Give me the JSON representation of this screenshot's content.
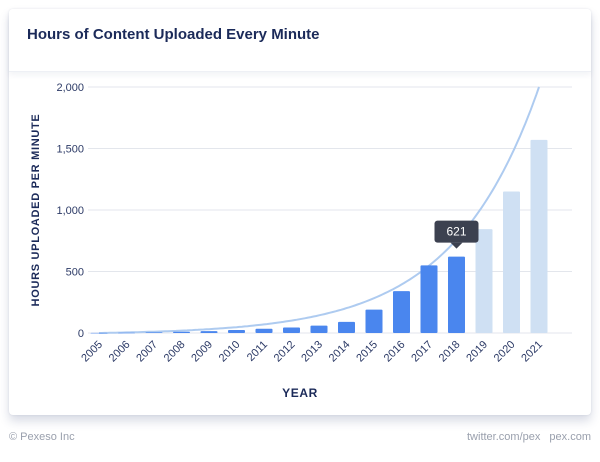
{
  "card": {
    "title": "Hours of Content Uploaded Every Minute"
  },
  "footer": {
    "copyright": "© Pexeso Inc",
    "links": [
      "twitter.com/pex",
      "pex.com"
    ]
  },
  "colors": {
    "bar": "#4a86ee",
    "projected_bar": "#cfe0f3",
    "curve": "#aecbf0",
    "axis_text": "#2c3a66",
    "tooltip_bg": "#3c4150"
  },
  "chart_data": {
    "type": "bar",
    "title": "Hours of Content Uploaded Every Minute",
    "xlabel": "YEAR",
    "ylabel": "HOURS UPLOADED PER MINUTE",
    "ylim": [
      0,
      2000
    ],
    "yticks": [
      0,
      500,
      1000,
      1500,
      2000
    ],
    "ytick_labels": [
      "0",
      "500",
      "1,000",
      "1,500",
      "2,000"
    ],
    "grid": true,
    "categories": [
      "2005",
      "2006",
      "2007",
      "2008",
      "2009",
      "2010",
      "2011",
      "2012",
      "2013",
      "2014",
      "2015",
      "2016",
      "2017",
      "2018",
      "2019",
      "2020",
      "2021"
    ],
    "series": [
      {
        "values": [
          1,
          2,
          5,
          10,
          15,
          24,
          35,
          45,
          60,
          90,
          190,
          340,
          550,
          621,
          null,
          null,
          null
        ]
      },
      {
        "values": [
          null,
          null,
          null,
          null,
          null,
          null,
          null,
          null,
          null,
          null,
          null,
          null,
          null,
          null,
          845,
          1150,
          1570
        ]
      }
    ],
    "trend_curve": {
      "type": "exponential",
      "x": [
        "2005",
        "2021"
      ],
      "y_at_2021": 2000
    },
    "tooltip": {
      "category": "2018",
      "value": "621"
    }
  }
}
